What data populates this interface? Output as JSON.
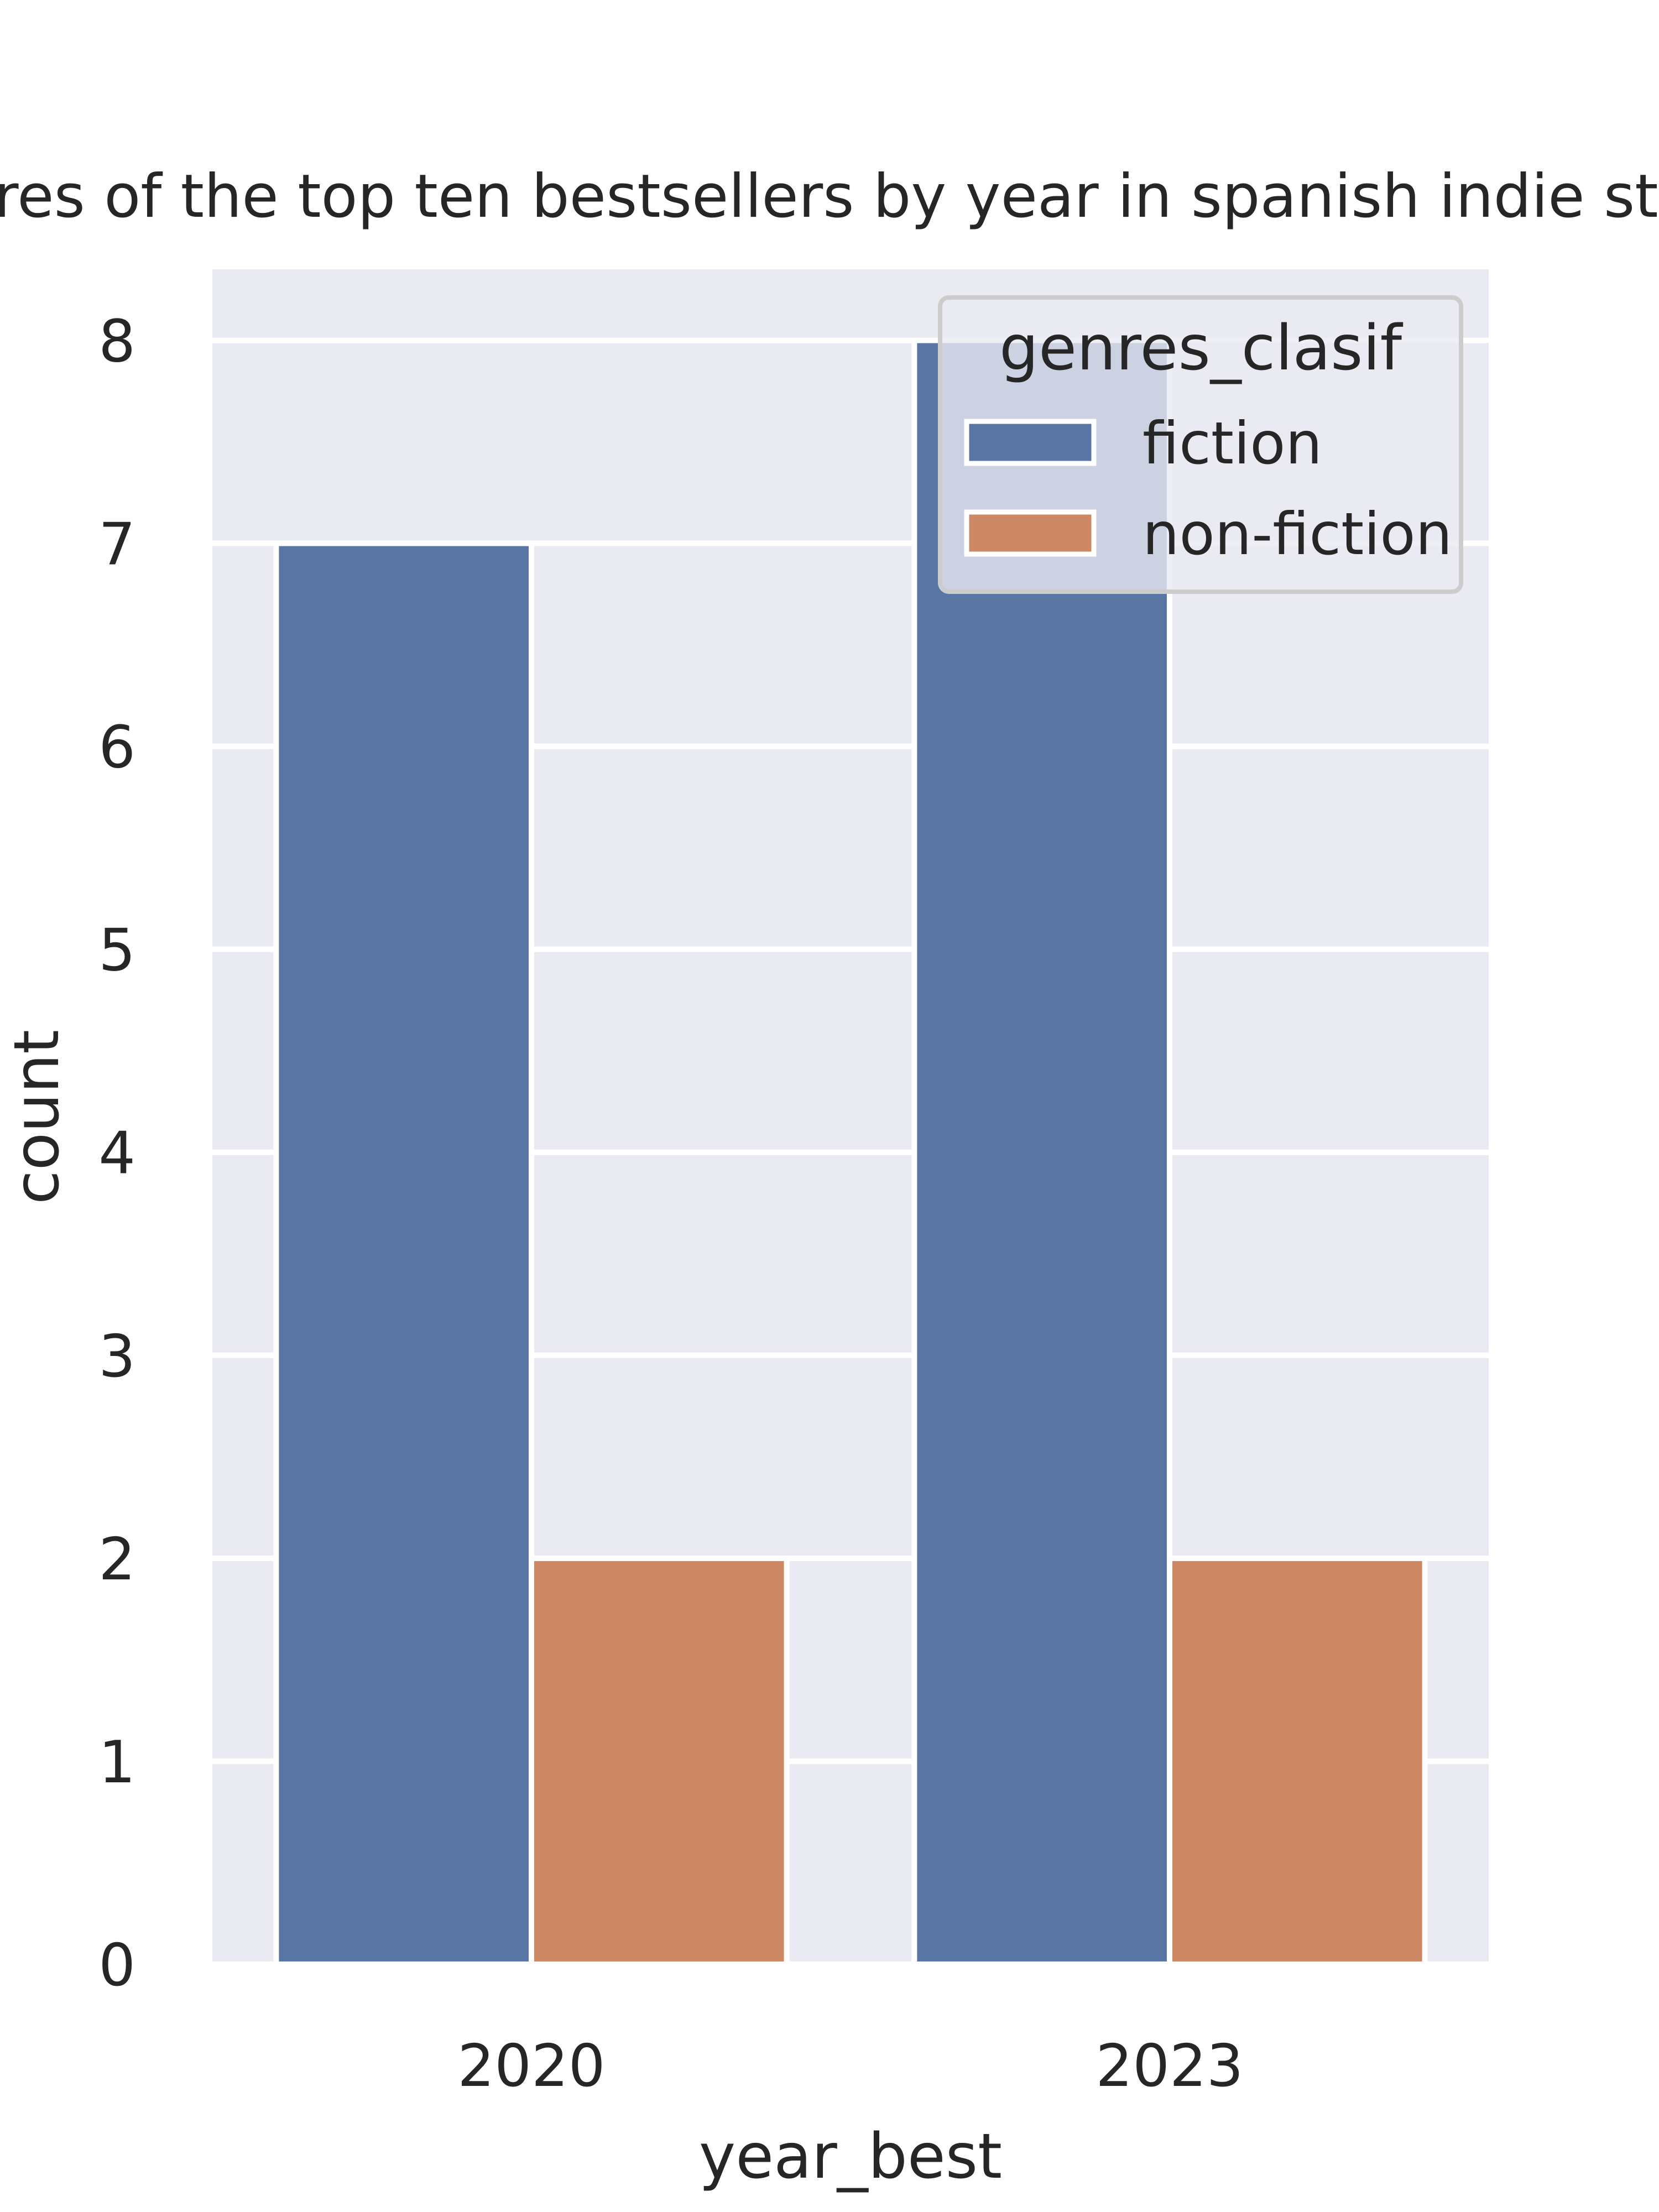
{
  "chart_data": {
    "type": "bar",
    "title": "Genres of the top ten bestsellers by year in spanish indie stores",
    "xlabel": "year_best",
    "ylabel": "count",
    "categories": [
      "2020",
      "2023"
    ],
    "series": [
      {
        "name": "fiction",
        "values": [
          7,
          8
        ],
        "color": "#5975a4"
      },
      {
        "name": "non-fiction",
        "values": [
          2,
          2
        ],
        "color": "#cc8963"
      }
    ],
    "ylim": [
      0,
      8.35
    ],
    "yticks": [
      "0",
      "1",
      "2",
      "3",
      "4",
      "5",
      "6",
      "7",
      "8"
    ],
    "legend": {
      "title": "genres_clasif",
      "placement": "upper right"
    },
    "grid": true,
    "background": "#eaeaf2"
  }
}
